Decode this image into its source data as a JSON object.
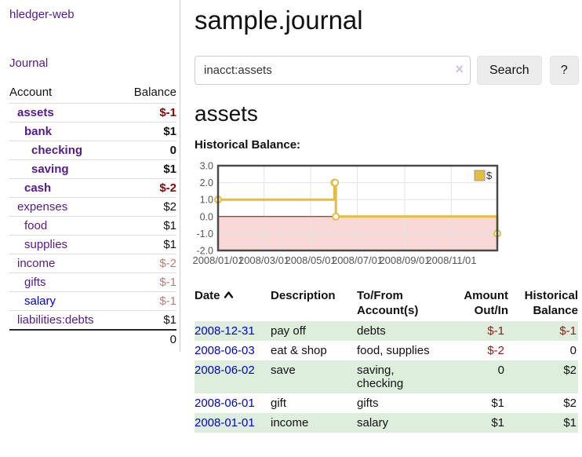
{
  "app": {
    "title": "hledger-web"
  },
  "colors": {
    "link_purple": "#551a8b",
    "link_blue": "#0000d0",
    "negative_strong": "#8b0000",
    "negative_muted": "#bd7b7b",
    "register_negative": "#8b1a1a",
    "shaded_row_green": "#ddeedd",
    "chart_gold": "#e5bc3e",
    "chart_zero_line": "#8b0000",
    "chart_negative_region": "#f9d8d8"
  },
  "sidebar": {
    "journal_link": "Journal",
    "accounts": {
      "col_account": "Account",
      "col_balance": "Balance",
      "rows": [
        {
          "label": "assets",
          "balance": "$-1",
          "indent": 1,
          "bold": true,
          "balance_color": "negative",
          "link_color": "purple"
        },
        {
          "label": "bank",
          "balance": "$1",
          "indent": 2,
          "bold": true,
          "balance_color": "normal",
          "link_color": "purple"
        },
        {
          "label": "checking",
          "balance": "0",
          "indent": 3,
          "bold": true,
          "balance_color": "normal",
          "link_color": "purple"
        },
        {
          "label": "saving",
          "balance": "$1",
          "indent": 3,
          "bold": true,
          "balance_color": "normal",
          "link_color": "purple"
        },
        {
          "label": "cash",
          "balance": "$-2",
          "indent": 2,
          "bold": true,
          "balance_color": "negative",
          "link_color": "purple"
        },
        {
          "label": "expenses",
          "balance": "$2",
          "indent": 1,
          "bold": false,
          "balance_color": "normal",
          "link_color": "purple"
        },
        {
          "label": "food",
          "balance": "$1",
          "indent": 2,
          "bold": false,
          "balance_color": "normal",
          "link_color": "purple"
        },
        {
          "label": "supplies",
          "balance": "$1",
          "indent": 2,
          "bold": false,
          "balance_color": "normal",
          "link_color": "purple"
        },
        {
          "label": "income",
          "balance": "$-2",
          "indent": 1,
          "bold": false,
          "balance_color": "negative-muted",
          "link_color": "purple"
        },
        {
          "label": "gifts",
          "balance": "$-1",
          "indent": 2,
          "bold": false,
          "balance_color": "negative-muted",
          "link_color": "purple"
        },
        {
          "label": "salary",
          "balance": "$-1",
          "indent": 2,
          "bold": false,
          "balance_color": "negative-muted",
          "link_color": "blue"
        },
        {
          "label": "liabilities:debts",
          "balance": "$1",
          "indent": 1,
          "bold": false,
          "balance_color": "normal",
          "link_color": "purple"
        }
      ],
      "total": "0"
    }
  },
  "header": {
    "title": "sample.journal"
  },
  "search": {
    "value": "inacct:assets",
    "clear_icon": "×",
    "search_button": "Search",
    "help_button": "?"
  },
  "account_page": {
    "heading": "assets",
    "section_label": "Historical Balance:"
  },
  "chart_data": {
    "type": "line",
    "step": true,
    "title": "Historical Balance",
    "xlim": [
      "2008-01-01",
      "2008-12-31"
    ],
    "ylim": [
      -2,
      3
    ],
    "grid": true,
    "yticks": [
      {
        "value": 3,
        "label": "3.0"
      },
      {
        "value": 2,
        "label": "2.0"
      },
      {
        "value": 1,
        "label": "1.0"
      },
      {
        "value": 0,
        "label": "0.0"
      },
      {
        "value": -1,
        "label": "-1.0"
      },
      {
        "value": -2,
        "label": "-2.0"
      }
    ],
    "xticks": [
      {
        "date": "2008-01-01",
        "label": "2008/01/01"
      },
      {
        "date": "2008-03-01",
        "label": "2008/03/01"
      },
      {
        "date": "2008-05-01",
        "label": "2008/05/01"
      },
      {
        "date": "2008-07-01",
        "label": "2008/07/01"
      },
      {
        "date": "2008-09-01",
        "label": "2008/09/01"
      },
      {
        "date": "2008-11-01",
        "label": "2008/11/01"
      }
    ],
    "series": [
      {
        "name": "$",
        "color": "#e5bc3e",
        "points": [
          [
            "2008-01-01",
            1
          ],
          [
            "2008-06-01",
            2
          ],
          [
            "2008-06-02",
            2
          ],
          [
            "2008-06-03",
            0
          ],
          [
            "2008-12-31",
            -1
          ]
        ]
      }
    ],
    "legend": {
      "label": "$",
      "position": "top-right"
    },
    "zero_line_color": "#8b0000",
    "negative_region_color": "#f9d8d8"
  },
  "register": {
    "headers": {
      "date": "Date",
      "description": "Description",
      "accounts": "To/From Account(s)",
      "amount": "Amount Out/In",
      "balance": "Historical Balance"
    },
    "rows": [
      {
        "date": "2008-12-31",
        "description": "pay off",
        "accounts": "debts",
        "amount": "$-1",
        "balance": "$-1",
        "amount_negative": true,
        "balance_negative": true,
        "shaded": true
      },
      {
        "date": "2008-06-03",
        "description": "eat & shop",
        "accounts": "food, supplies",
        "amount": "$-2",
        "balance": "0",
        "amount_negative": true,
        "balance_negative": false,
        "shaded": false
      },
      {
        "date": "2008-06-02",
        "description": "save",
        "accounts": "saving, checking",
        "amount": "0",
        "balance": "$2",
        "amount_negative": false,
        "balance_negative": false,
        "shaded": true
      },
      {
        "date": "2008-06-01",
        "description": "gift",
        "accounts": "gifts",
        "amount": "$1",
        "balance": "$2",
        "amount_negative": false,
        "balance_negative": false,
        "shaded": false
      },
      {
        "date": "2008-01-01",
        "description": "income",
        "accounts": "salary",
        "amount": "$1",
        "balance": "$1",
        "amount_negative": false,
        "balance_negative": false,
        "shaded": true
      }
    ]
  }
}
